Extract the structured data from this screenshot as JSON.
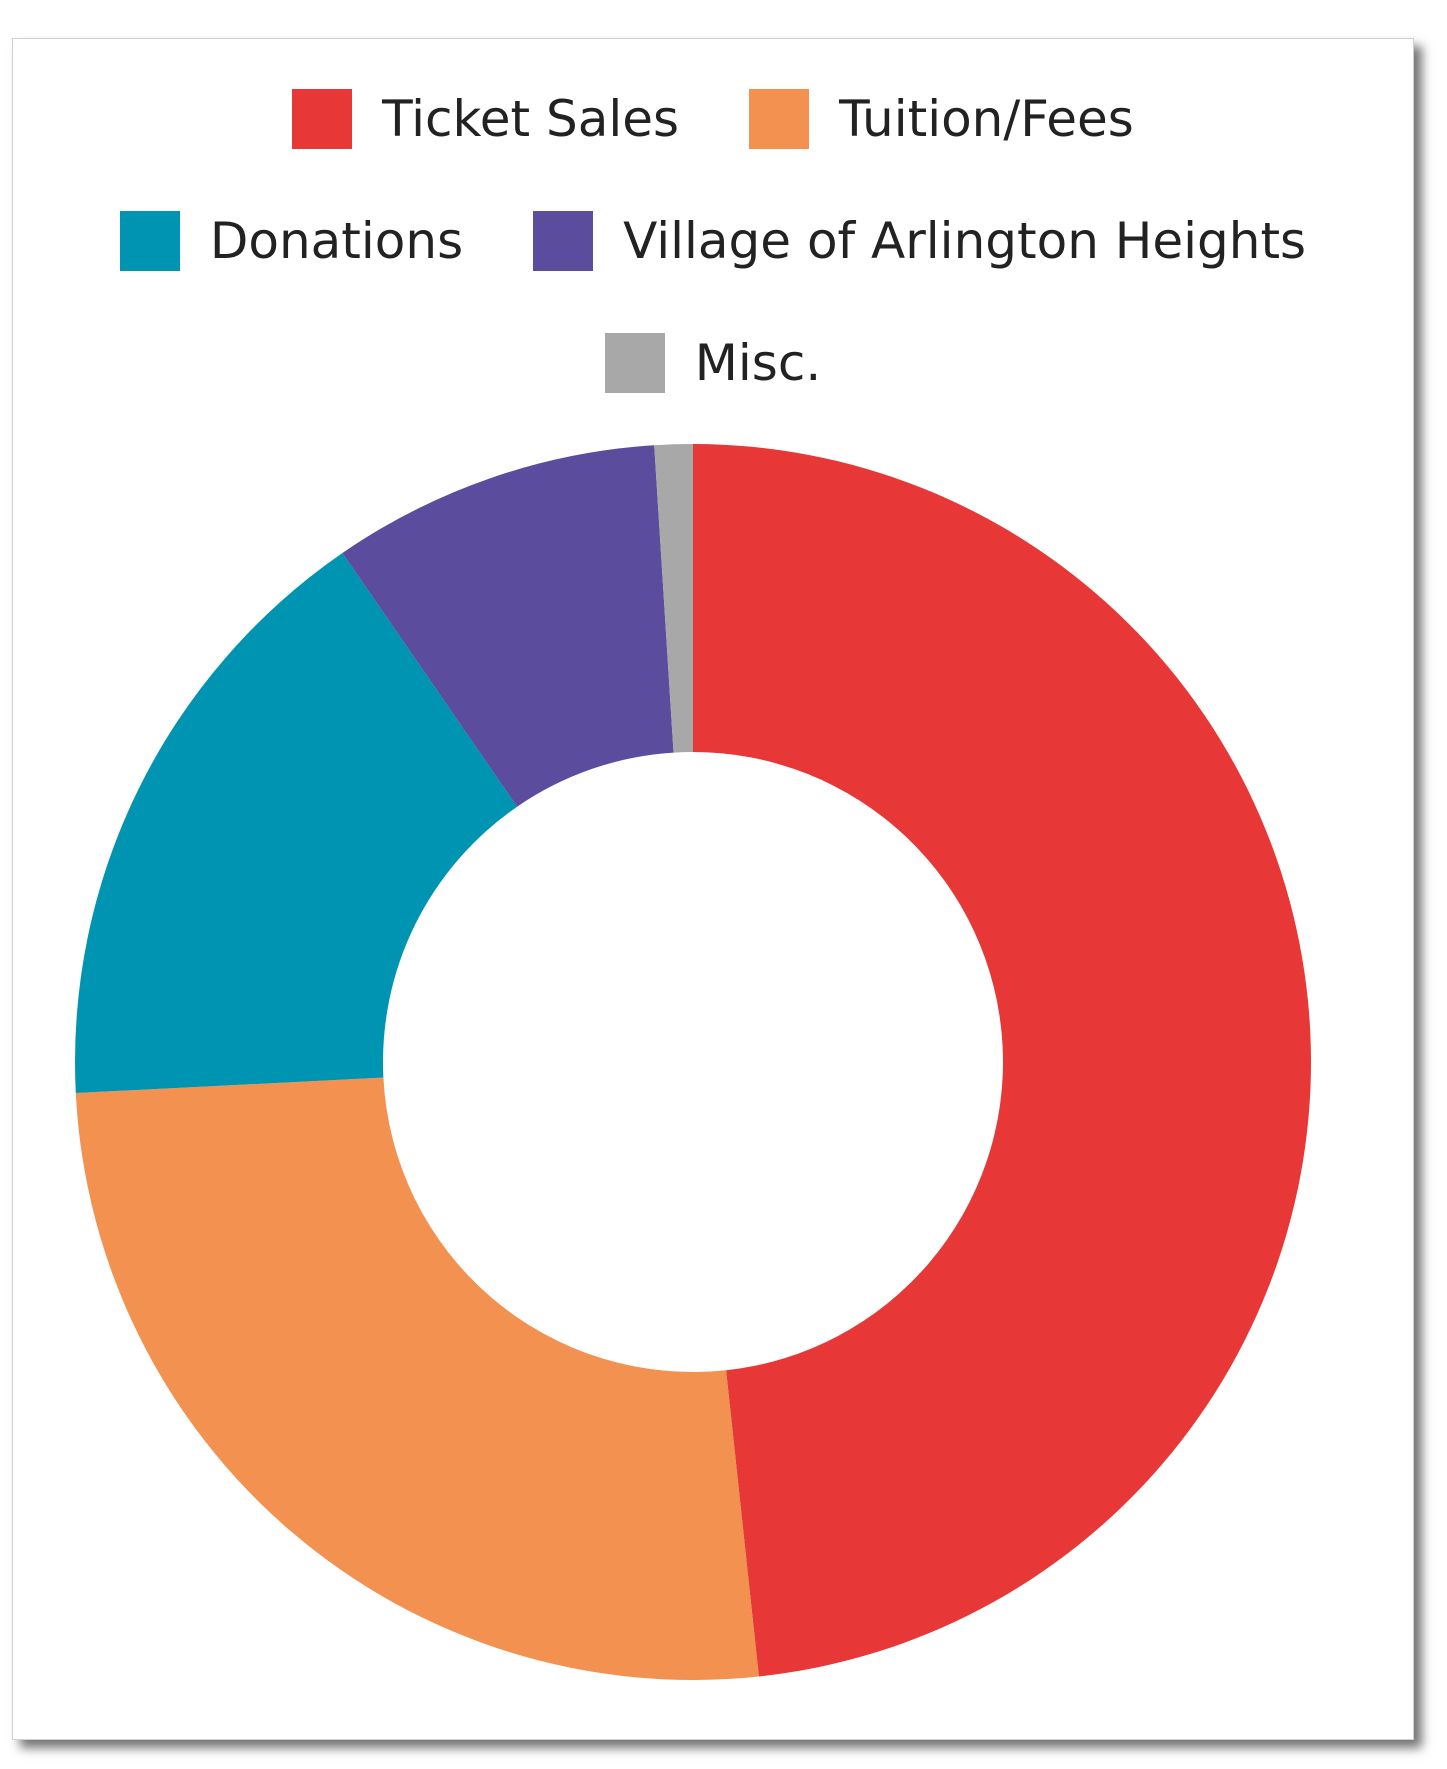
{
  "chart_data": {
    "type": "pie",
    "donut": true,
    "legend_placement": "top",
    "categories": [
      "Ticket Sales",
      "Tuition/Fees",
      "Donations",
      "Village of Arlington Heights",
      "Misc."
    ],
    "values": [
      48.3,
      25.9,
      16.2,
      8.6,
      1.0
    ],
    "unit": "%",
    "colors": [
      "#e73737",
      "#f39151",
      "#0094b3",
      "#5b4c9e",
      "#a8a8a8"
    ]
  }
}
